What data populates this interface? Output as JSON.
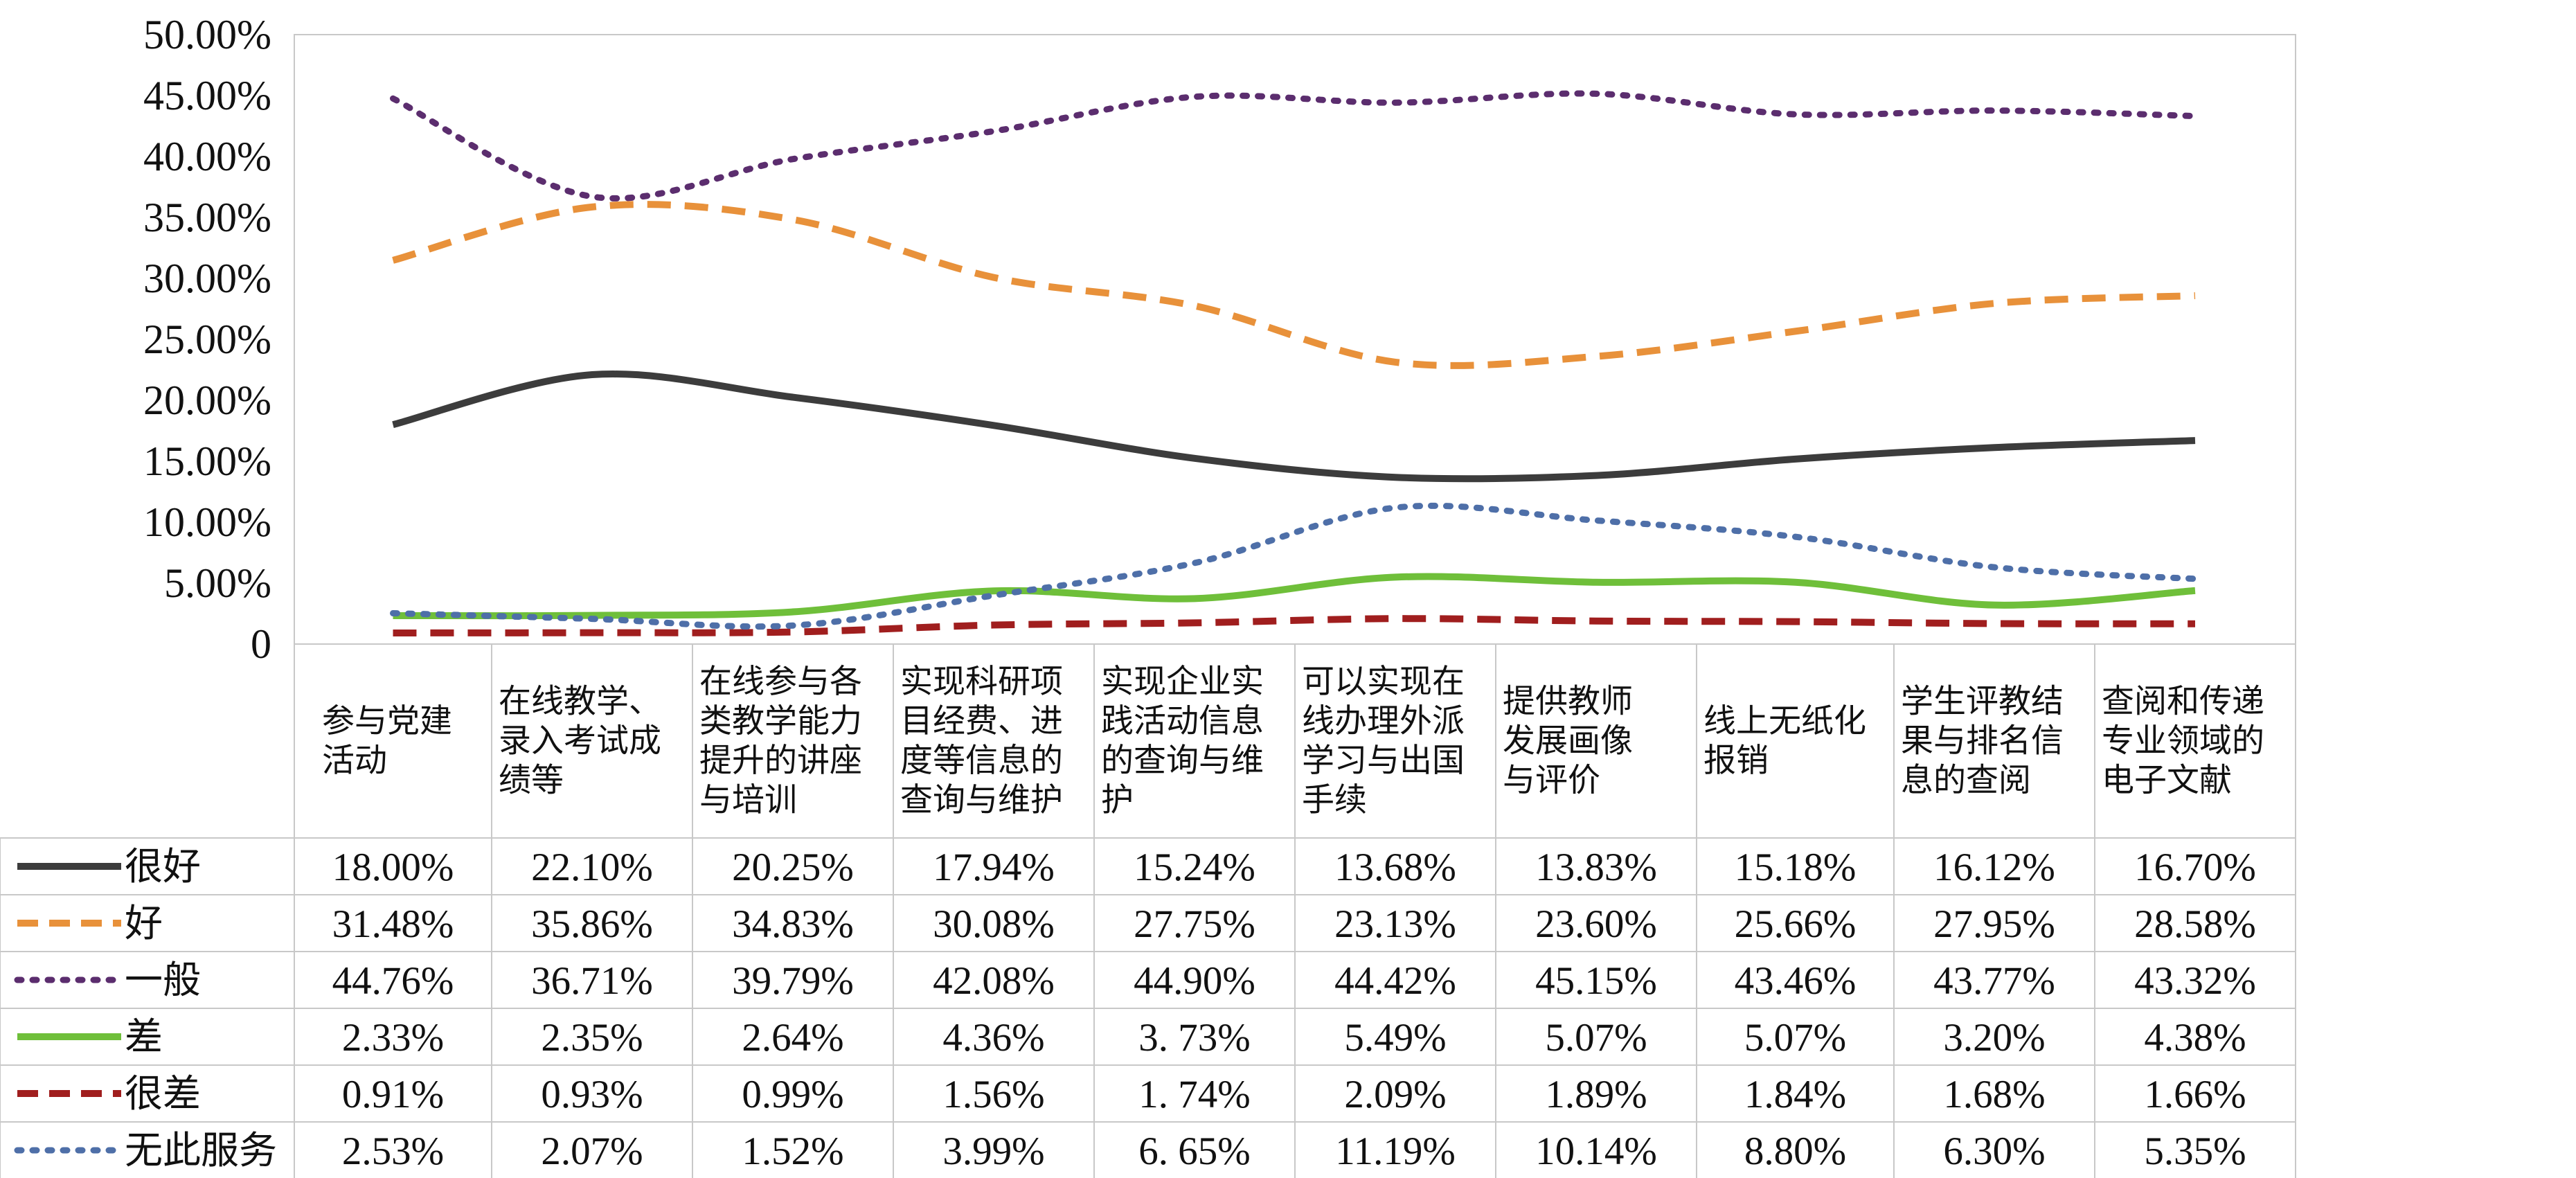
{
  "chart_data": {
    "type": "line",
    "y_ticks": [
      "50.00%",
      "45.00%",
      "40.00%",
      "35.00%",
      "30.00%",
      "25.00%",
      "20.00%",
      "15.00%",
      "10.00%",
      "5.00%",
      "0"
    ],
    "ylim": [
      0,
      50
    ],
    "grid": false,
    "legend_placement": "data-table-left",
    "categories": [
      [
        "参与党建",
        "活动"
      ],
      [
        "在线教学、",
        "录入考试成",
        "绩等"
      ],
      [
        "在线参与各",
        "类教学能力",
        "提升的讲座",
        "与培训"
      ],
      [
        "实现科研项",
        "目经费、进",
        "度等信息的",
        "查询与维护"
      ],
      [
        "实现企业实",
        "践活动信息",
        "的查询与维",
        "护"
      ],
      [
        "可以实现在",
        "线办理外派",
        "学习与出国",
        "手续"
      ],
      [
        "提供教师",
        "发展画像",
        "与评价"
      ],
      [
        "线上无纸化",
        "报销"
      ],
      [
        "学生评教结",
        "果与排名信",
        "息的查阅"
      ],
      [
        "查阅和传递",
        "专业领域的",
        "电子文献"
      ]
    ],
    "series": [
      {
        "name": "很好",
        "color": "#3c3c3c",
        "style": "solid",
        "values": [
          18.0,
          22.1,
          20.25,
          17.94,
          15.24,
          13.68,
          13.83,
          15.18,
          16.12,
          16.7
        ],
        "labels": [
          "18.00%",
          "22.10%",
          "20.25%",
          "17.94%",
          "15.24%",
          "13.68%",
          "13.83%",
          "15.18%",
          "16.12%",
          "16.70%"
        ]
      },
      {
        "name": "好",
        "color": "#e8913a",
        "style": "dashed",
        "values": [
          31.48,
          35.86,
          34.83,
          30.08,
          27.75,
          23.13,
          23.6,
          25.66,
          27.95,
          28.58
        ],
        "labels": [
          "31.48%",
          "35.86%",
          "34.83%",
          "30.08%",
          "27.75%",
          "23.13%",
          "23.60%",
          "25.66%",
          "27.95%",
          "28.58%"
        ]
      },
      {
        "name": "一般",
        "color": "#5b2d6e",
        "style": "dotted",
        "values": [
          44.76,
          36.71,
          39.79,
          42.08,
          44.9,
          44.42,
          45.15,
          43.46,
          43.77,
          43.32
        ],
        "labels": [
          "44.76%",
          "36.71%",
          "39.79%",
          "42.08%",
          "44.90%",
          "44.42%",
          "45.15%",
          "43.46%",
          "43.77%",
          "43.32%"
        ]
      },
      {
        "name": "差",
        "color": "#6fbf3a",
        "style": "solid",
        "values": [
          2.33,
          2.35,
          2.64,
          4.36,
          3.73,
          5.49,
          5.07,
          5.07,
          3.2,
          4.38
        ],
        "labels": [
          "2.33%",
          "2.35%",
          "2.64%",
          "4.36%",
          "3. 73%",
          "5.49%",
          "5.07%",
          "5.07%",
          "3.20%",
          "4.38%"
        ]
      },
      {
        "name": "很差",
        "color": "#a01e1e",
        "style": "dashed",
        "values": [
          0.91,
          0.93,
          0.99,
          1.56,
          1.74,
          2.09,
          1.89,
          1.84,
          1.68,
          1.66
        ],
        "labels": [
          "0.91%",
          "0.93%",
          "0.99%",
          "1.56%",
          "1. 74%",
          "2.09%",
          "1.89%",
          "1.84%",
          "1.68%",
          "1.66%"
        ]
      },
      {
        "name": "无此服务",
        "color": "#4e6fa8",
        "style": "dotted",
        "values": [
          2.53,
          2.07,
          1.52,
          3.99,
          6.65,
          11.19,
          10.14,
          8.8,
          6.3,
          5.35
        ],
        "labels": [
          "2.53%",
          "2.07%",
          "1.52%",
          "3.99%",
          "6. 65%",
          "11.19%",
          "10.14%",
          "8.80%",
          "6.30%",
          "5.35%"
        ]
      }
    ]
  }
}
